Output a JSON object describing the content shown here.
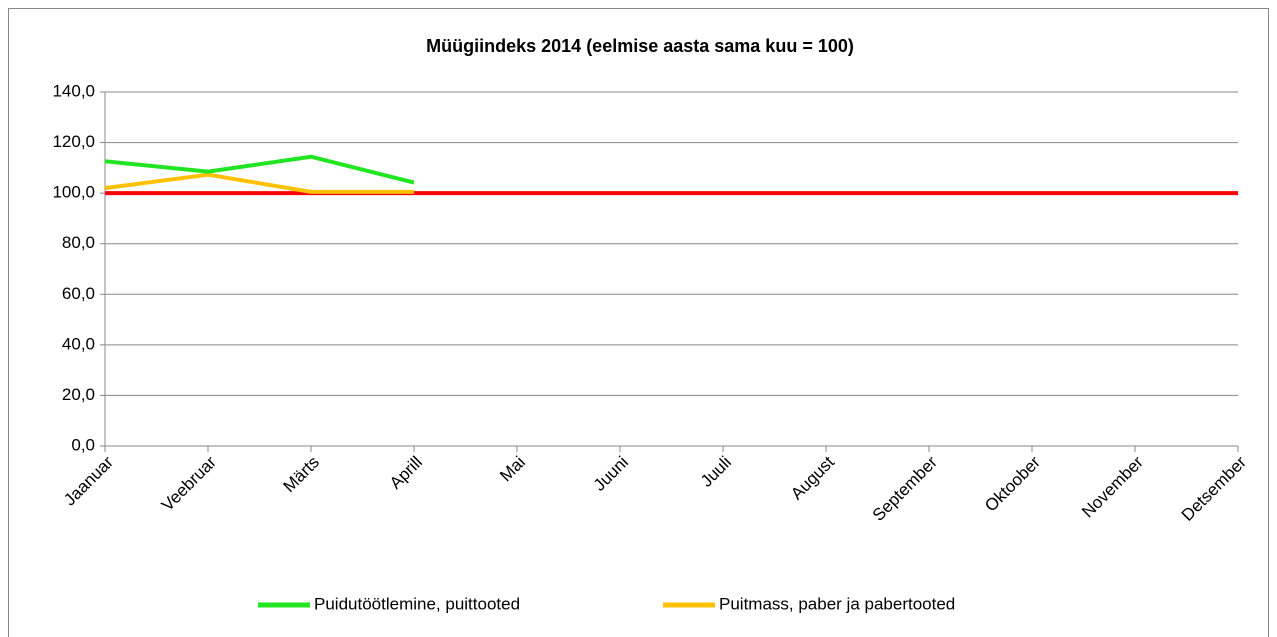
{
  "chart_data": {
    "type": "line",
    "title": "Müügiindeks  2014  (eelmise  aasta sama kuu = 100)",
    "categories": [
      "Jaanuar",
      "Veebruar",
      "Märts",
      "Aprill",
      "Mai",
      "Juuni",
      "Juuli",
      "August",
      "September",
      "Oktoober",
      "November",
      "Detsember"
    ],
    "series": [
      {
        "name": "Puidutöötlemine, puittooted",
        "color": "#22e522",
        "values": [
          112.6,
          108.5,
          114.4,
          104.2,
          null,
          null,
          null,
          null,
          null,
          null,
          null,
          null
        ]
      },
      {
        "name": "Puitmass, paber ja pabertooted",
        "color": "#ffc000",
        "values": [
          102.0,
          107.3,
          100.5,
          100.5,
          null,
          null,
          null,
          null,
          null,
          null,
          null,
          null
        ]
      },
      {
        "color": "#ff0000",
        "values": [
          100,
          100,
          100,
          100,
          100,
          100,
          100,
          100,
          100,
          100,
          100,
          100
        ]
      }
    ],
    "ylim": [
      0,
      140
    ],
    "yticks": [
      {
        "value": 0,
        "label": "0,0"
      },
      {
        "value": 20,
        "label": "20,0"
      },
      {
        "value": 40,
        "label": "40,0"
      },
      {
        "value": 60,
        "label": "60,0"
      },
      {
        "value": 80,
        "label": "80,0"
      },
      {
        "value": 100,
        "label": "100,0"
      },
      {
        "value": 120,
        "label": "120,0"
      },
      {
        "value": 140,
        "label": "140,0"
      }
    ],
    "grid": true,
    "legend": "bottom"
  }
}
